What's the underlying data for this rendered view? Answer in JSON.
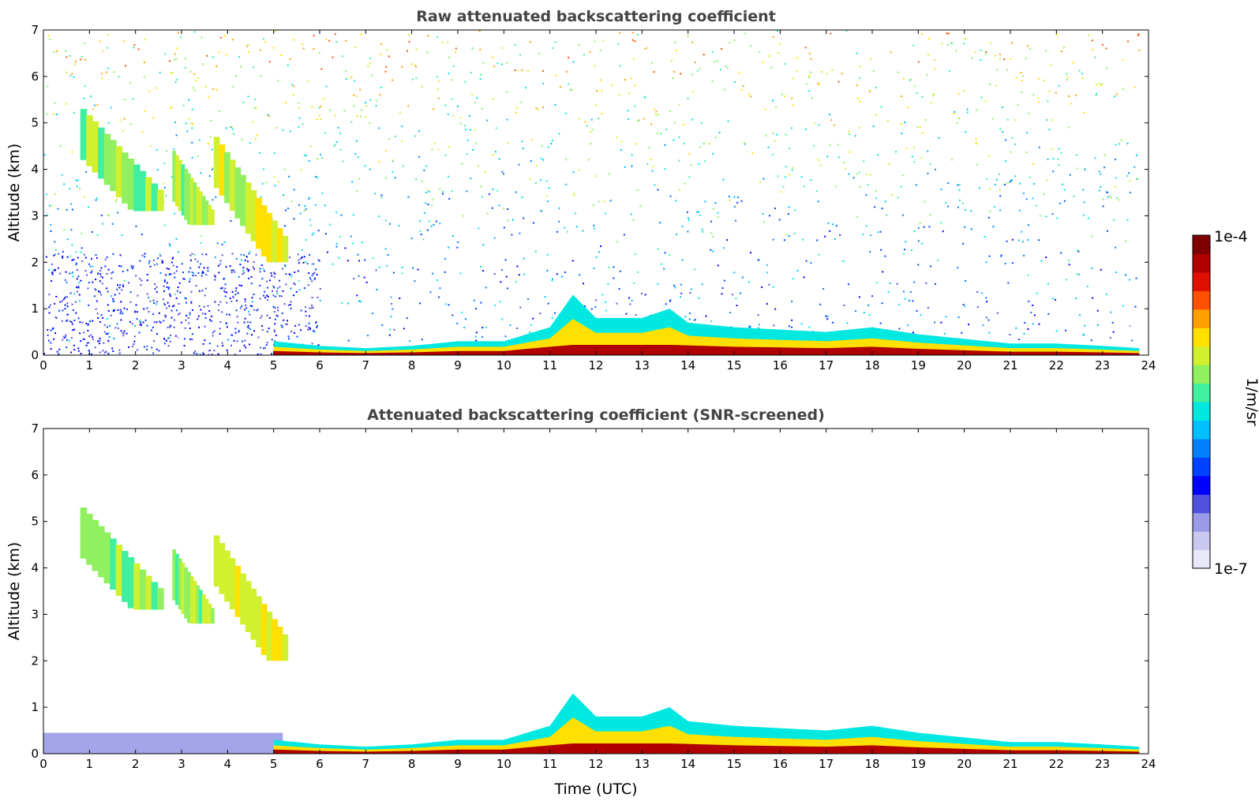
{
  "chart_data": [
    {
      "type": "heatmap",
      "title": "Raw attenuated backscattering coefficient",
      "xlabel": "",
      "ylabel": "Altitude (km)",
      "xlim": [
        0,
        24
      ],
      "ylim": [
        0,
        7
      ],
      "xticks": [
        "0",
        "1",
        "2",
        "3",
        "4",
        "5",
        "6",
        "7",
        "8",
        "9",
        "10",
        "11",
        "12",
        "13",
        "14",
        "15",
        "16",
        "17",
        "18",
        "19",
        "20",
        "21",
        "22",
        "23",
        "24"
      ],
      "yticks": [
        "0",
        "1",
        "2",
        "3",
        "4",
        "5",
        "6",
        "7"
      ],
      "noise_background": true,
      "features": [
        {
          "kind": "cirrus-streak",
          "t_start": 0.8,
          "t_end": 2.6,
          "alt_top": 5.3,
          "alt_bottom": 3.1,
          "level": 0.58
        },
        {
          "kind": "cirrus-streak",
          "t_start": 2.8,
          "t_end": 3.7,
          "alt_top": 4.4,
          "alt_bottom": 2.8,
          "level": 0.6
        },
        {
          "kind": "cirrus-streak",
          "t_start": 3.7,
          "t_end": 5.3,
          "alt_top": 4.7,
          "alt_bottom": 2.0,
          "level": 0.66
        },
        {
          "kind": "boundary-layer",
          "t_start": 5.0,
          "t_end": 23.8,
          "profile_t": [
            5,
            6,
            7,
            8,
            9,
            10,
            11,
            11.5,
            12,
            13,
            13.6,
            14,
            15,
            16,
            17,
            18,
            19,
            20,
            21,
            22,
            23,
            23.8
          ],
          "profile_top": [
            0.3,
            0.2,
            0.15,
            0.2,
            0.3,
            0.3,
            0.6,
            1.3,
            0.8,
            0.8,
            1.0,
            0.7,
            0.6,
            0.55,
            0.5,
            0.6,
            0.45,
            0.35,
            0.25,
            0.25,
            0.2,
            0.15
          ],
          "level": 0.78
        }
      ]
    },
    {
      "type": "heatmap",
      "title": "Attenuated backscattering coefficient (SNR-screened)",
      "xlabel": "Time (UTC)",
      "ylabel": "Altitude (km)",
      "xlim": [
        0,
        24
      ],
      "ylim": [
        0,
        7
      ],
      "xticks": [
        "0",
        "1",
        "2",
        "3",
        "4",
        "5",
        "6",
        "7",
        "8",
        "9",
        "10",
        "11",
        "12",
        "13",
        "14",
        "15",
        "16",
        "17",
        "18",
        "19",
        "20",
        "21",
        "22",
        "23",
        "24"
      ],
      "yticks": [
        "0",
        "1",
        "2",
        "3",
        "4",
        "5",
        "6",
        "7"
      ],
      "noise_background": false,
      "features": [
        {
          "kind": "cirrus-streak",
          "t_start": 0.8,
          "t_end": 2.6,
          "alt_top": 5.3,
          "alt_bottom": 3.1,
          "level": 0.58
        },
        {
          "kind": "cirrus-streak",
          "t_start": 2.8,
          "t_end": 3.7,
          "alt_top": 4.4,
          "alt_bottom": 2.8,
          "level": 0.6
        },
        {
          "kind": "cirrus-streak",
          "t_start": 3.7,
          "t_end": 5.3,
          "alt_top": 4.7,
          "alt_bottom": 2.0,
          "level": 0.66
        },
        {
          "kind": "boundary-layer",
          "t_start": 5.0,
          "t_end": 23.8,
          "profile_t": [
            5,
            6,
            7,
            8,
            9,
            10,
            11,
            11.5,
            12,
            13,
            13.6,
            14,
            15,
            16,
            17,
            18,
            19,
            20,
            21,
            22,
            23,
            23.8
          ],
          "profile_top": [
            0.3,
            0.2,
            0.15,
            0.2,
            0.3,
            0.3,
            0.6,
            1.3,
            0.8,
            0.8,
            1.0,
            0.7,
            0.6,
            0.55,
            0.5,
            0.6,
            0.45,
            0.35,
            0.25,
            0.25,
            0.2,
            0.15
          ],
          "level": 0.78
        }
      ]
    }
  ],
  "colorbar": {
    "label": "1/m/sr",
    "max_label": "1e-4",
    "min_label": "1e-7",
    "colors": [
      "#e8e8f8",
      "#c8c8f0",
      "#9a9ae6",
      "#5050e0",
      "#0000ff",
      "#0040ff",
      "#0080ff",
      "#00c0ff",
      "#00e8e0",
      "#40f0a0",
      "#90f060",
      "#d0f030",
      "#ffe000",
      "#ffa000",
      "#ff5000",
      "#e01000",
      "#b00000",
      "#800000"
    ]
  }
}
